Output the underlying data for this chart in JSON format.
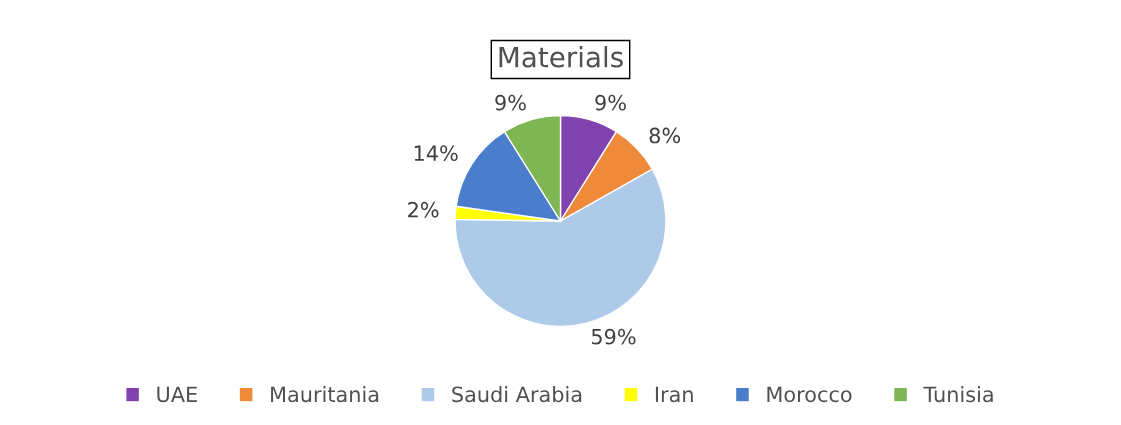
{
  "chart_data": {
    "type": "pie",
    "title": "Materials",
    "categories": [
      "UAE",
      "Mauritania",
      "Saudi Arabia",
      "Iran",
      "Morocco",
      "Tunisia"
    ],
    "values": [
      9,
      8,
      59,
      2,
      14,
      9
    ],
    "value_labels": [
      "9%",
      "8%",
      "59%",
      "2%",
      "14%",
      "9%"
    ],
    "colors": [
      "#8043b0",
      "#ee8a3a",
      "#adcbe9",
      "#ffff00",
      "#4a7dcc",
      "#7db653"
    ],
    "legend": "bottom"
  }
}
